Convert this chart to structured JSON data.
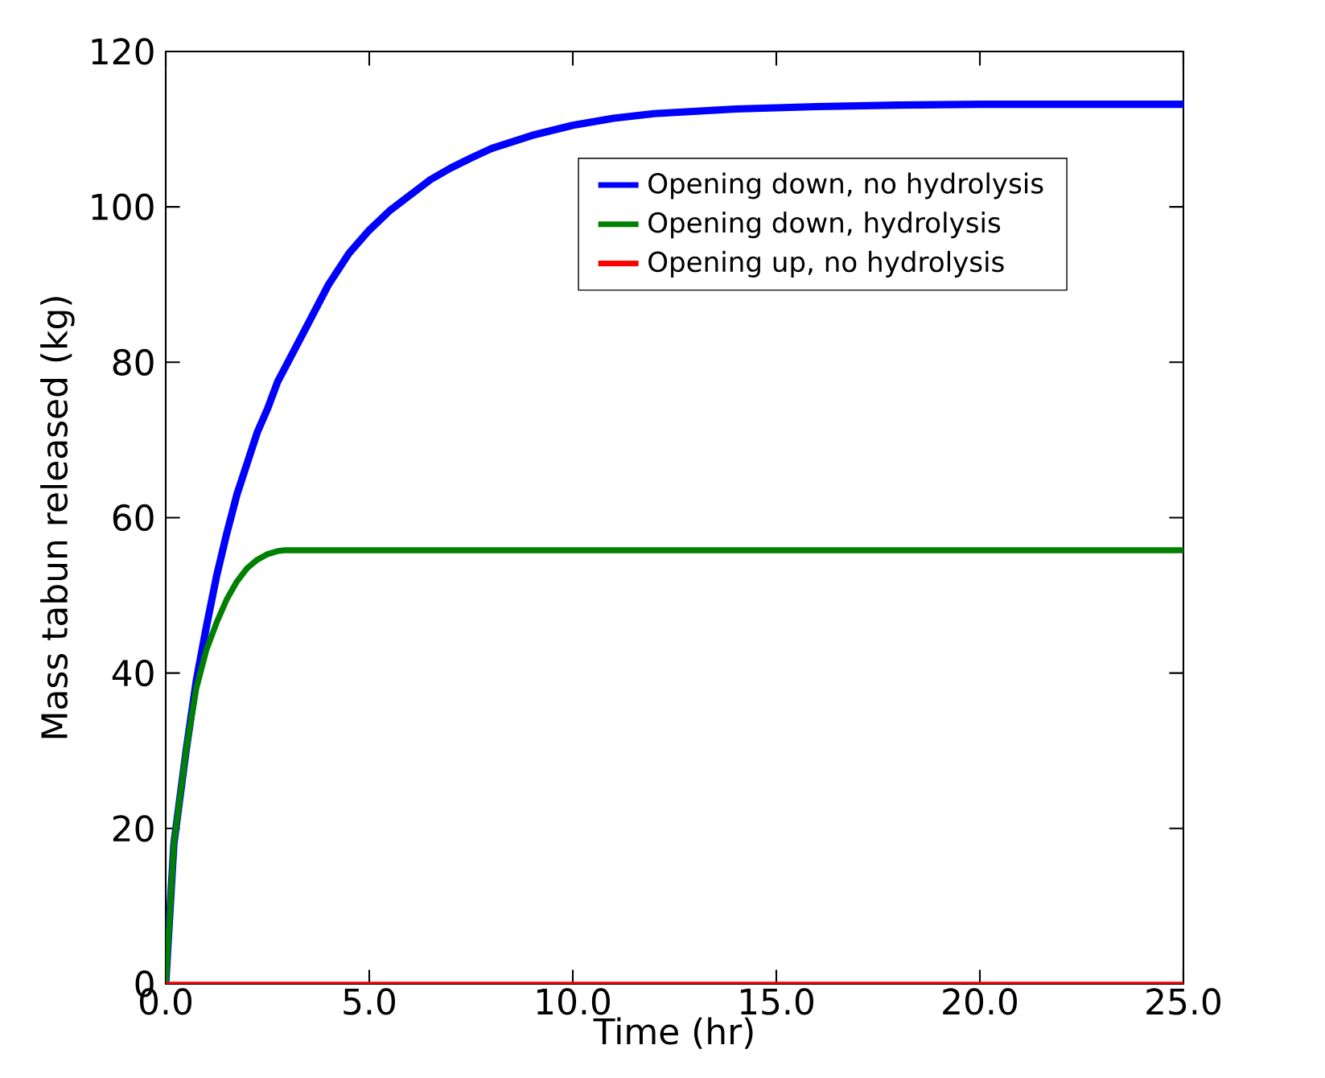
{
  "chart_data": {
    "type": "line",
    "xlabel": "Time (hr)",
    "ylabel": "Mass tabun released (kg)",
    "xlim": [
      0,
      25
    ],
    "ylim": [
      0,
      120
    ],
    "xticks": [
      {
        "value": 0,
        "label": "0.0"
      },
      {
        "value": 5,
        "label": "5.0"
      },
      {
        "value": 10,
        "label": "10.0"
      },
      {
        "value": 15,
        "label": "15.0"
      },
      {
        "value": 20,
        "label": "20.0"
      },
      {
        "value": 25,
        "label": "25.0"
      }
    ],
    "yticks": [
      0,
      20,
      40,
      60,
      80,
      100,
      120
    ],
    "grid": false,
    "legend": "top right",
    "marker": "none",
    "line_style": "solid",
    "series": [
      {
        "name": "Opening down, no hydrolysis",
        "color": "#0000ff",
        "x": [
          0,
          0.2,
          0.5,
          0.75,
          1,
          1.25,
          1.5,
          1.75,
          2,
          2.25,
          2.5,
          2.75,
          3,
          3.5,
          4,
          4.5,
          5,
          5.5,
          6,
          6.5,
          7,
          7.5,
          8,
          9,
          10,
          11,
          12,
          14,
          16,
          18,
          20,
          25
        ],
        "values": [
          0,
          18,
          30,
          39,
          46,
          52.5,
          58,
          63,
          67,
          71,
          74,
          77.5,
          80,
          85,
          90,
          94,
          97,
          99.5,
          101.5,
          103.5,
          105,
          106.3,
          107.5,
          109.2,
          110.5,
          111.4,
          112,
          112.6,
          112.9,
          113.1,
          113.2,
          113.2
        ]
      },
      {
        "name": "Opening down, hydrolysis",
        "color": "#008000",
        "x": [
          0,
          0.2,
          0.5,
          0.75,
          1,
          1.25,
          1.5,
          1.75,
          2,
          2.25,
          2.5,
          2.75,
          2.9,
          25
        ],
        "values": [
          0,
          18,
          30,
          38,
          43,
          46.5,
          49.5,
          51.8,
          53.5,
          54.6,
          55.3,
          55.7,
          55.8,
          55.8
        ]
      },
      {
        "name": "Opening up, no hydrolysis",
        "color": "#ff0000",
        "x": [
          0,
          25
        ],
        "values": [
          0,
          0
        ]
      }
    ]
  }
}
